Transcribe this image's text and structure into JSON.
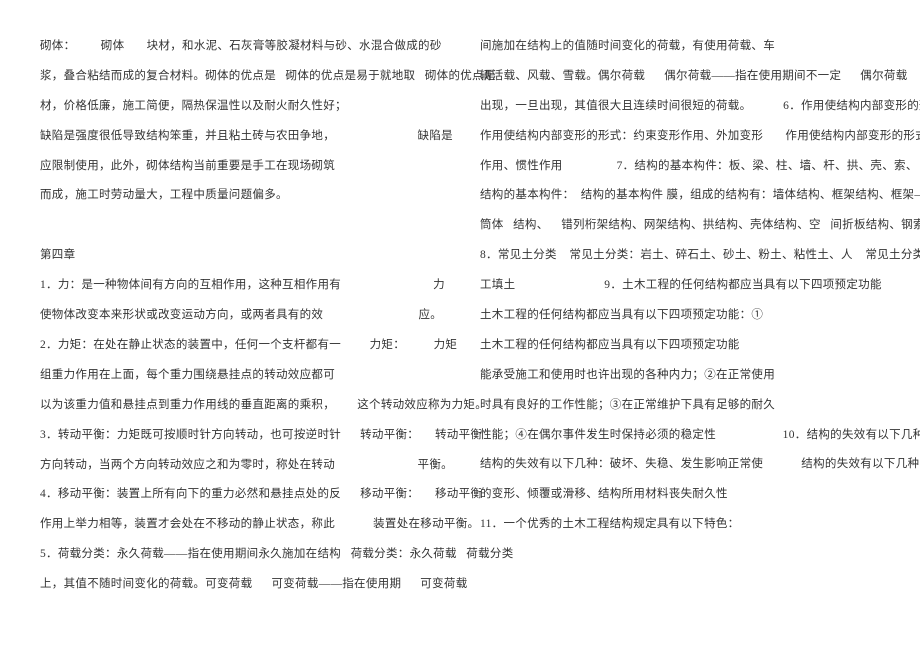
{
  "lines": [
    "砌体：        砌体       块材，和水泥、石灰膏等胶凝材料与砂、水混合做成的砂",
    "浆，叠合粘结而成的复合材料。砌体的优点是   砌体的优点是易于就地取   砌体的优点是",
    "材，价格低廉，施工简便，隔热保温性以及耐火耐久性好；",
    "缺陷是强度很低导致结构笨重，并且粘土砖与农田争地，                          缺陷是",
    "应限制使用，此外，砌体结构当前重要是手工在现场砌筑",
    "而成，施工时劳动量大，工程中质量问题偏多。",
    "",
    "第四章",
    "1．力：是一种物体间有方向的互相作用，这种互相作用有                             力",
    "使物体改变本来形状或改变运动方向，或两者具有的效                              应。",
    "2．力矩：在处在静止状态的装置中，任何一个支杆都有一         力矩：         力矩",
    "组重力作用在上面，每个重力围绕悬挂点的转动效应都可",
    "以为该重力值和悬挂点到重力作用线的垂直距离的乘积，       这个转动效应称为力矩。",
    "3．转动平衡：力矩既可按顺时针方向转动，也可按逆时针      转动平衡：     转动平衡",
    "方向转动，当两个方向转动效应之和为零时，称处在转动                          平衡。",
    "4．移动平衡：装置上所有向下的重力必然和悬挂点处的反      移动平衡：     移动平衡",
    "作用上举力相等，装置才会处在不移动的静止状态，称此            装置处在移动平衡。",
    "5．荷载分类：永久荷载——指在使用期间永久施加在结构   荷载分类：永久荷载   荷载分类",
    "上，其值不随时间变化的荷载。可变荷载      可变荷载——指在使用期      可变荷载",
    "间施加在结构上的值随时间变化的荷载，有使用荷载、车",
    "辆活载、风载、雪载。偶尔荷载      偶尔荷载——指在使用期间不一定      偶尔荷载",
    "出现，一旦出现，其值很大且连续时间很短的荷载。          6．作用使结构内部变形的形式",
    "作用使结构内部变形的形式：约束变形作用、外加变形       作用使结构内部变形的形式",
    "作用、惯性作用                 7．结构的基本构件：板、梁、柱、墙、杆、拱、壳、索、",
    "结构的基本构件：  结构的基本构件 膜，组成的结构有：墙体结构、框架结构、框架——",
    "筒体   结构、    错列桁架结构、网架结构、拱结构、壳体结构、空   间折板结构、钢索结构",
    "8．常见土分类    常见土分类：岩土、碎石土、砂土、粉土、粘性土、人    常见土分类",
    "工填土                            9．土木工程的任何结构都应当具有以下四项预定功能",
    "土木工程的任何结构都应当具有以下四项预定功能：①",
    "土木工程的任何结构都应当具有以下四项预定功能",
    "能承受施工和使用时也许出现的各种内力；②在正常使用",
    "时具有良好的工作性能；③在正常维护下具有足够的耐久",
    "性能；④在偶尔事件发生时保持必须的稳定性                     10．结构的失效有以下几种",
    "结构的失效有以下几种：破坏、失稳、发生影响正常使            结构的失效有以下几种",
    "的变形、倾覆或滑移、结构所用材料丧失耐久性",
    "11．一个优秀的土木工程结构规定具有以下特色："
  ]
}
